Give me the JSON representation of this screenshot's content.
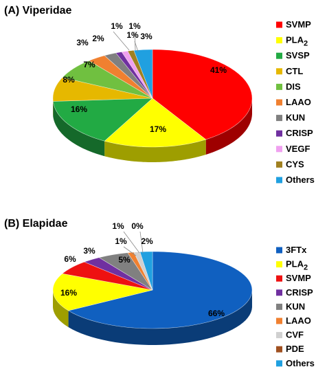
{
  "chart_data": [
    {
      "type": "pie",
      "title": "(A) Viperidae",
      "categories": [
        "SVMP",
        "PLA2",
        "SVSP",
        "CTL",
        "DIS",
        "LAAO",
        "KUN",
        "CRISP",
        "VEGF",
        "CYS",
        "Others"
      ],
      "values": [
        41,
        17,
        16,
        8,
        7,
        3,
        2,
        1,
        1,
        1,
        3
      ],
      "data_labels": [
        "41%",
        "17%",
        "16%",
        "8%",
        "7%",
        "3%",
        "2%",
        "1%",
        "1%",
        "1%",
        "3%"
      ],
      "colors": [
        "#ff0000",
        "#ffff00",
        "#22aa44",
        "#e6b800",
        "#70c040",
        "#f08030",
        "#808080",
        "#7030a0",
        "#f0a0f0",
        "#a08020",
        "#20a0e0"
      ],
      "legend_position": "right"
    },
    {
      "type": "pie",
      "title": "(B) Elapidae",
      "categories": [
        "3FTx",
        "PLA2",
        "SVMP",
        "CRISP",
        "KUN",
        "LAAO",
        "CVF",
        "PDE",
        "Others"
      ],
      "values": [
        66,
        16,
        6,
        3,
        5,
        1,
        1,
        0,
        2
      ],
      "data_labels": [
        "66%",
        "16%",
        "6%",
        "3%",
        "5%",
        "1%",
        "1%",
        "0%",
        "2%"
      ],
      "colors": [
        "#1060c0",
        "#ffff00",
        "#ee1111",
        "#7030a0",
        "#808080",
        "#f08030",
        "#d0d0d0",
        "#a05020",
        "#20a0e0"
      ],
      "legend_position": "right"
    }
  ]
}
